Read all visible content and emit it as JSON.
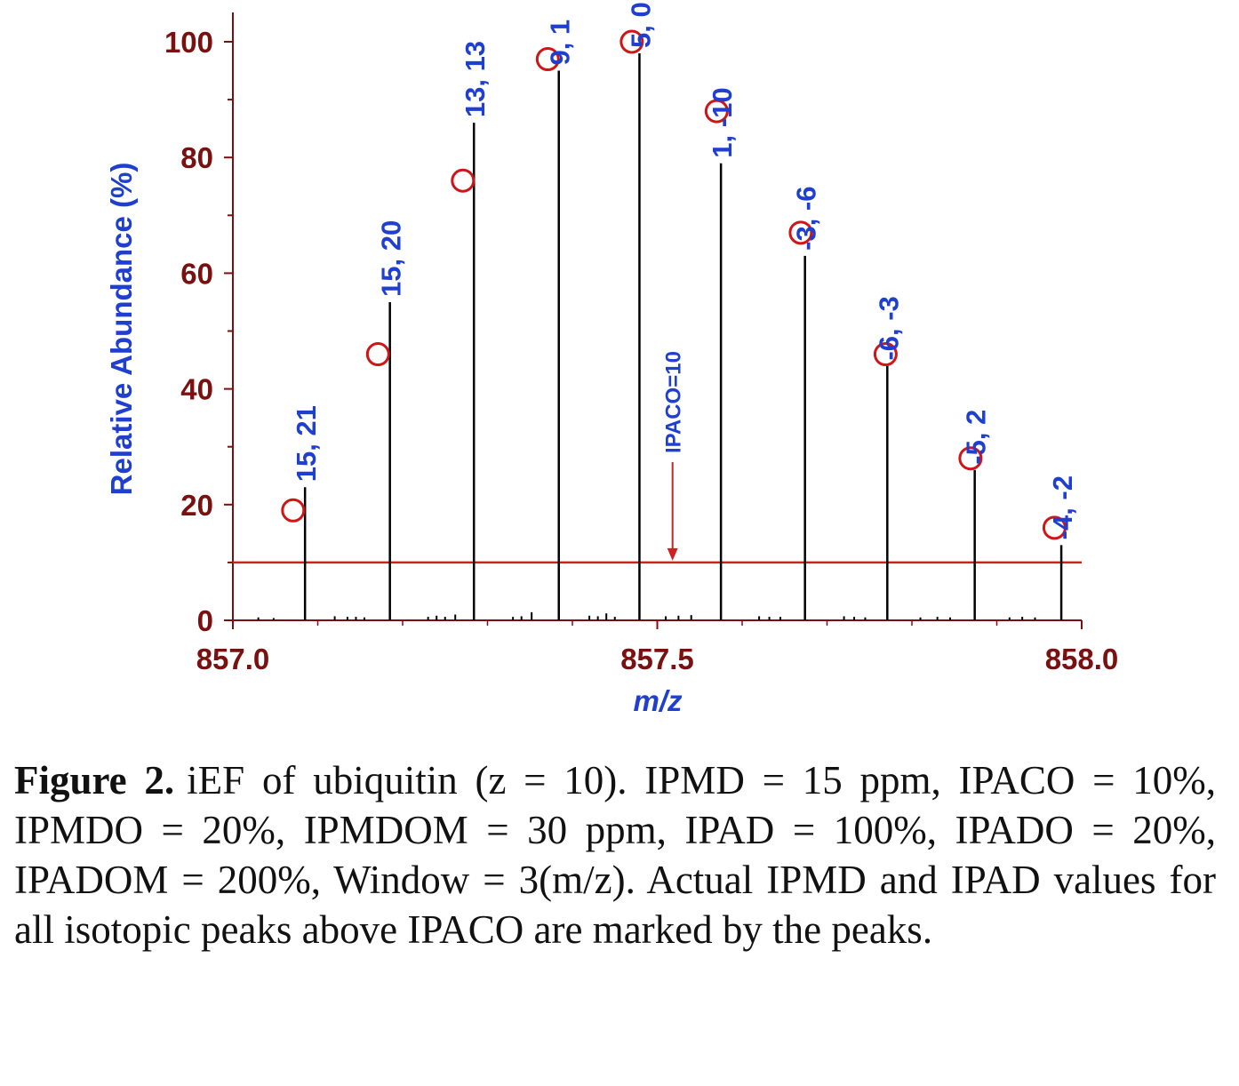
{
  "chart_data": {
    "type": "bar",
    "xlabel": "m/z",
    "ylabel": "Relative Abundance (%)",
    "xlim": [
      857.0,
      858.0
    ],
    "ylim": [
      0,
      100
    ],
    "x_ticks": [
      "857.0",
      "857.5",
      "858.0"
    ],
    "y_ticks": [
      "0",
      "20",
      "40",
      "60",
      "80",
      "100"
    ],
    "grid": false,
    "colors": {
      "axis": "#7a1010",
      "axis_label": "#1f3fd0",
      "peak": "#000000",
      "theoretical_marker": "#d01515",
      "peak_label": "#1f3fd0",
      "threshold": "#cc2222"
    },
    "series": [
      {
        "type": "stick",
        "points": [
          {
            "mz": 857.085,
            "abundance": 23,
            "label": "15, 21"
          },
          {
            "mz": 857.185,
            "abundance": 55,
            "label": "15, 20"
          },
          {
            "mz": 857.284,
            "abundance": 86,
            "label": "13, 13"
          },
          {
            "mz": 857.384,
            "abundance": 95,
            "label": "9, 1"
          },
          {
            "mz": 857.479,
            "abundance": 98,
            "label": "5, 0"
          },
          {
            "mz": 857.575,
            "abundance": 79,
            "label": "1, -10"
          },
          {
            "mz": 857.674,
            "abundance": 63,
            "label": "-3, -6"
          },
          {
            "mz": 857.771,
            "abundance": 44,
            "label": "-6, -3"
          },
          {
            "mz": 857.874,
            "abundance": 26,
            "label": "-5, 2"
          },
          {
            "mz": 857.976,
            "abundance": 13,
            "label": "-4, -2"
          }
        ]
      },
      {
        "type": "scatter",
        "marker": "open-circle",
        "points": [
          {
            "mz": 857.071,
            "abundance": 19
          },
          {
            "mz": 857.171,
            "abundance": 46
          },
          {
            "mz": 857.271,
            "abundance": 76
          },
          {
            "mz": 857.371,
            "abundance": 97
          },
          {
            "mz": 857.47,
            "abundance": 100
          },
          {
            "mz": 857.57,
            "abundance": 88
          },
          {
            "mz": 857.669,
            "abundance": 67
          },
          {
            "mz": 857.769,
            "abundance": 46
          },
          {
            "mz": 857.869,
            "abundance": 28
          },
          {
            "mz": 857.968,
            "abundance": 16
          }
        ]
      }
    ],
    "noise": [
      {
        "mz": 857.03,
        "abundance": 0.5
      },
      {
        "mz": 857.048,
        "abundance": 0.4
      },
      {
        "mz": 857.12,
        "abundance": 0.7
      },
      {
        "mz": 857.135,
        "abundance": 0.6
      },
      {
        "mz": 857.145,
        "abundance": 0.6
      },
      {
        "mz": 857.155,
        "abundance": 0.5
      },
      {
        "mz": 857.23,
        "abundance": 0.6
      },
      {
        "mz": 857.24,
        "abundance": 0.8
      },
      {
        "mz": 857.25,
        "abundance": 0.6
      },
      {
        "mz": 857.262,
        "abundance": 1.0
      },
      {
        "mz": 857.33,
        "abundance": 0.6
      },
      {
        "mz": 857.34,
        "abundance": 0.7
      },
      {
        "mz": 857.352,
        "abundance": 1.4
      },
      {
        "mz": 857.42,
        "abundance": 0.8
      },
      {
        "mz": 857.43,
        "abundance": 0.7
      },
      {
        "mz": 857.44,
        "abundance": 1.2
      },
      {
        "mz": 857.45,
        "abundance": 0.6
      },
      {
        "mz": 857.51,
        "abundance": 0.7
      },
      {
        "mz": 857.525,
        "abundance": 0.8
      },
      {
        "mz": 857.54,
        "abundance": 0.9
      },
      {
        "mz": 857.62,
        "abundance": 0.7
      },
      {
        "mz": 857.632,
        "abundance": 0.6
      },
      {
        "mz": 857.645,
        "abundance": 0.6
      },
      {
        "mz": 857.72,
        "abundance": 0.7
      },
      {
        "mz": 857.732,
        "abundance": 0.6
      },
      {
        "mz": 857.745,
        "abundance": 0.5
      },
      {
        "mz": 857.81,
        "abundance": 0.5
      },
      {
        "mz": 857.83,
        "abundance": 0.6
      },
      {
        "mz": 857.845,
        "abundance": 0.5
      },
      {
        "mz": 857.915,
        "abundance": 0.5
      },
      {
        "mz": 857.93,
        "abundance": 0.6
      },
      {
        "mz": 857.945,
        "abundance": 0.5
      }
    ],
    "threshold": {
      "abundance": 10,
      "label": "IPACO=10",
      "arrow_mz": 857.518
    }
  },
  "caption": {
    "label": "Figure 2.",
    "text": "iEF of ubiquitin (z = 10). IPMD = 15 ppm, IPACO = 10%, IPMDO = 20%, IPMDOM = 30 ppm, IPAD = 100%, IPADO = 20%, IPADOM = 200%, Window = 3(m/z). Actual IPMD and IPAD values for all isotopic peaks above IPACO are marked by the peaks."
  }
}
